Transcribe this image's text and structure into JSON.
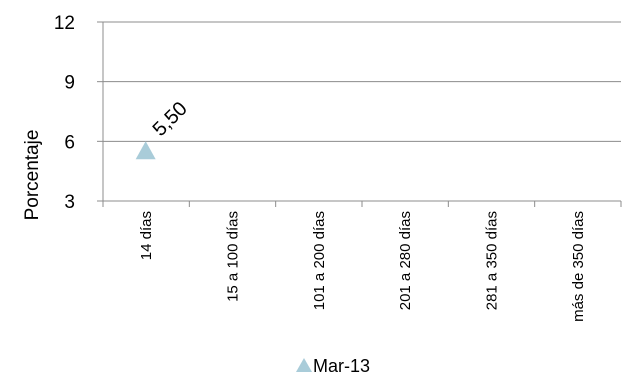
{
  "chart_data": {
    "type": "scatter",
    "title": "",
    "xlabel": "",
    "ylabel": "Porcentaje",
    "categories": [
      "14 días",
      "15 a 100 días",
      "101 a 200 días",
      "201 a 280 días",
      "281 a 350 días",
      "más de  350 días"
    ],
    "ylim": [
      3,
      12
    ],
    "yticks": [
      3,
      6,
      9,
      12
    ],
    "ytick_labels": [
      "3",
      "6",
      "9",
      "12"
    ],
    "grid": true,
    "legend_position": "bottom",
    "series": [
      {
        "name": "Mar-13",
        "marker": "triangle",
        "color": "#a9ccd9",
        "values": [
          5.5,
          null,
          null,
          null,
          null,
          null
        ],
        "data_labels": [
          "5,50",
          "",
          "",
          "",
          "",
          ""
        ]
      }
    ]
  }
}
